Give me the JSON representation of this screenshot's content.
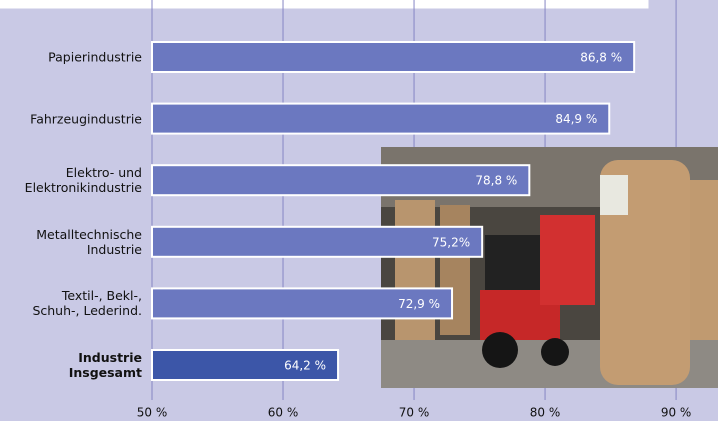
{
  "chart_data": {
    "type": "barh",
    "categories": [
      "Papierindustrie",
      "Fahrzeugindustrie",
      "Elektro- und\nElektronikindustrie",
      "Metalltechnische\nIndustrie",
      "Textil-, Bekl-,\nSchuh-, Lederind.",
      "Industrie\nInsgesamt"
    ],
    "values": [
      86.8,
      84.9,
      78.8,
      75.2,
      72.9,
      64.2
    ],
    "value_labels": [
      "86,8 %",
      "84,9 %",
      "78,8 %",
      "75,2%",
      "72,9 %",
      "64,2 %"
    ],
    "colors": [
      "#6b78c0",
      "#6b78c0",
      "#6b78c0",
      "#6b78c0",
      "#6b78c0",
      "#3c56a8"
    ],
    "xlim": [
      50,
      93.2
    ],
    "xticks": [
      {
        "value": 50,
        "label": "50 %"
      },
      {
        "value": 60,
        "label": "60 %"
      },
      {
        "value": 70,
        "label": "70 %"
      },
      {
        "value": 80,
        "label": "80 %"
      },
      {
        "value": 90,
        "label": "90 %"
      }
    ],
    "grid": true
  }
}
